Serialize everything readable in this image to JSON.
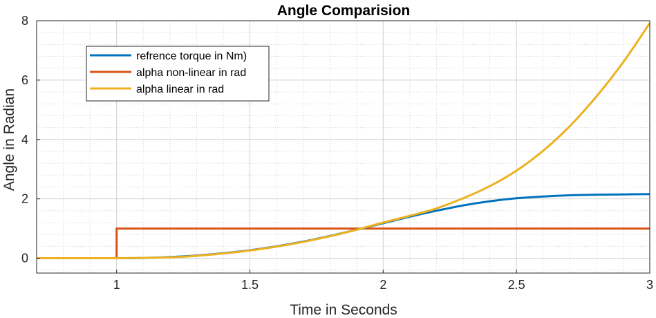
{
  "chart_data": {
    "type": "line",
    "title": "Angle Comparision",
    "xlabel": "Time in Seconds",
    "ylabel": "Angle in Radian",
    "xlim": [
      0.7,
      3.0
    ],
    "ylim": [
      -0.5,
      8
    ],
    "xticks": [
      1,
      1.5,
      2,
      2.5,
      3
    ],
    "xtick_labels": [
      "1",
      "1.5",
      "2",
      "2.5",
      "3"
    ],
    "yticks": [
      0,
      2,
      4,
      6,
      8
    ],
    "ytick_labels": [
      "0",
      "2",
      "4",
      "6",
      "8"
    ],
    "grid": "major and minor",
    "legend_position": "top-left",
    "series": [
      {
        "name": "refrence torque in Nm)",
        "color": "#0072BD",
        "x": [
          0.7,
          1.0,
          1.1,
          1.2,
          1.3,
          1.4,
          1.5,
          1.6,
          1.7,
          1.8,
          1.9,
          2.0,
          2.1,
          2.2,
          2.3,
          2.4,
          2.5,
          2.6,
          2.7,
          2.8,
          2.9,
          3.0
        ],
        "values": [
          0,
          0,
          0.01,
          0.04,
          0.09,
          0.17,
          0.27,
          0.4,
          0.56,
          0.75,
          0.96,
          1.18,
          1.4,
          1.6,
          1.78,
          1.92,
          2.02,
          2.08,
          2.12,
          2.14,
          2.15,
          2.16
        ]
      },
      {
        "name": "alpha non-linear in rad",
        "color": "#D95319",
        "x": [
          0.7,
          1.0,
          1.0,
          3.0
        ],
        "values": [
          0,
          0,
          1,
          1
        ]
      },
      {
        "name": "alpha linear in rad",
        "color": "#EDB120",
        "x": [
          0.7,
          1.0,
          1.1,
          1.2,
          1.3,
          1.4,
          1.5,
          1.6,
          1.7,
          1.8,
          1.9,
          2.0,
          2.1,
          2.2,
          2.3,
          2.4,
          2.5,
          2.6,
          2.7,
          2.8,
          2.9,
          3.0
        ],
        "values": [
          0,
          0,
          0.01,
          0.03,
          0.08,
          0.16,
          0.26,
          0.39,
          0.55,
          0.74,
          0.96,
          1.2,
          1.43,
          1.68,
          2.02,
          2.43,
          2.95,
          3.62,
          4.45,
          5.45,
          6.6,
          7.92
        ]
      }
    ]
  }
}
